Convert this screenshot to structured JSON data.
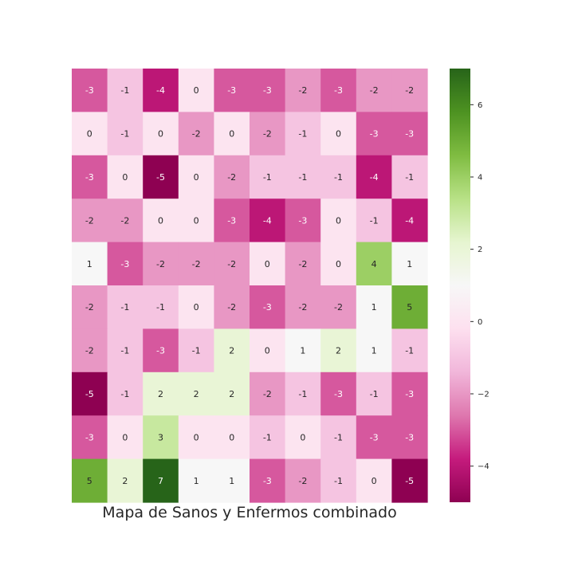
{
  "chart_data": {
    "type": "heatmap",
    "title": "Mapa de Sanos y Enfermos combinado",
    "xlabel": "",
    "ylabel": "",
    "colormap": "PiYG",
    "vmin": -5,
    "vmax": 7,
    "colorbar": {
      "ticks": [
        -4,
        -2,
        0,
        2,
        4,
        6
      ],
      "tick_labels": [
        "−4",
        "−2",
        "0",
        "2",
        "4",
        "6"
      ]
    },
    "annotations": true,
    "values": [
      [
        -3,
        -1,
        -4,
        0,
        -3,
        -3,
        -2,
        -3,
        -2,
        -2
      ],
      [
        0,
        -1,
        0,
        -2,
        0,
        -2,
        -1,
        0,
        -3,
        -3
      ],
      [
        -3,
        0,
        -5,
        0,
        -2,
        -1,
        -1,
        -1,
        -4,
        -1
      ],
      [
        -2,
        -2,
        0,
        0,
        -3,
        -4,
        -3,
        0,
        -1,
        -4
      ],
      [
        1,
        -3,
        -2,
        -2,
        -2,
        0,
        -2,
        0,
        4,
        1
      ],
      [
        -2,
        -1,
        -1,
        0,
        -2,
        -3,
        -2,
        -2,
        1,
        5
      ],
      [
        -2,
        -1,
        -3,
        -1,
        2,
        0,
        1,
        2,
        1,
        -1
      ],
      [
        -5,
        -1,
        2,
        2,
        2,
        -2,
        -1,
        -3,
        -1,
        -3
      ],
      [
        -3,
        0,
        3,
        0,
        0,
        -1,
        0,
        -1,
        -3,
        -3
      ],
      [
        5,
        2,
        7,
        1,
        1,
        -3,
        -2,
        -1,
        0,
        -5
      ]
    ]
  }
}
